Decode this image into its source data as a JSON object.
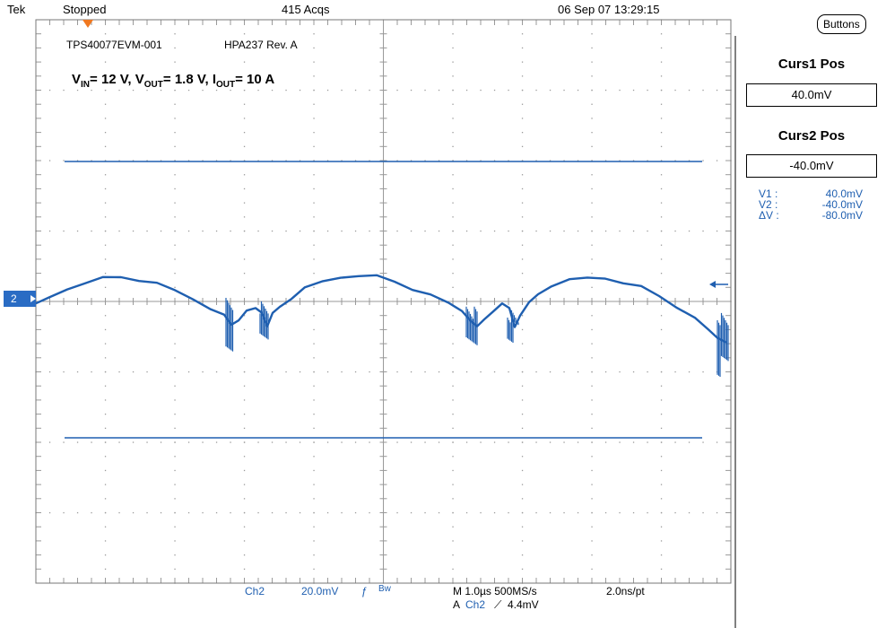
{
  "header": {
    "brand": "Tek",
    "status": "Stopped",
    "acquisitions": "415 Acqs",
    "datetime": "06 Sep 07 13:29:15"
  },
  "buttons_label": "Buttons",
  "screen_labels": {
    "board": "TPS40077EVM-001",
    "revision": "HPA237 Rev. A",
    "conditions": {
      "vin_sym": "V",
      "vin_sub": "IN",
      "vin_val": "= 12 V, ",
      "vout_sym": "V",
      "vout_sub": "OUT",
      "vout_val": "= 1.8 V, ",
      "iout_sym": "I",
      "iout_sub": "OUT",
      "iout_val": "= 10 A"
    }
  },
  "channel_marker": "2",
  "cursor_panel": {
    "curs1_title": "Curs1 Pos",
    "curs1_value": "40.0mV",
    "curs2_title": "Curs2 Pos",
    "curs2_value": "-40.0mV",
    "readouts": [
      {
        "label": "V1 :",
        "value": "40.0mV"
      },
      {
        "label": "V2 :",
        "value": "-40.0mV"
      },
      {
        "label": "ΔV :",
        "value": "-80.0mV"
      }
    ]
  },
  "footer": {
    "channel": "Ch2",
    "scale": "20.0mV",
    "coupling": "Bw",
    "timebase": "M 1.0µs 500MS/s",
    "record": "2.0ns/pt",
    "trigger_prefix": "A",
    "trigger_channel": "Ch2",
    "trigger_slope": "⟋",
    "trigger_level": "4.4mV"
  },
  "colors": {
    "trace": "#1f5fb0",
    "grid": "#9a9a9a",
    "trigger_marker": "#f07820"
  }
}
